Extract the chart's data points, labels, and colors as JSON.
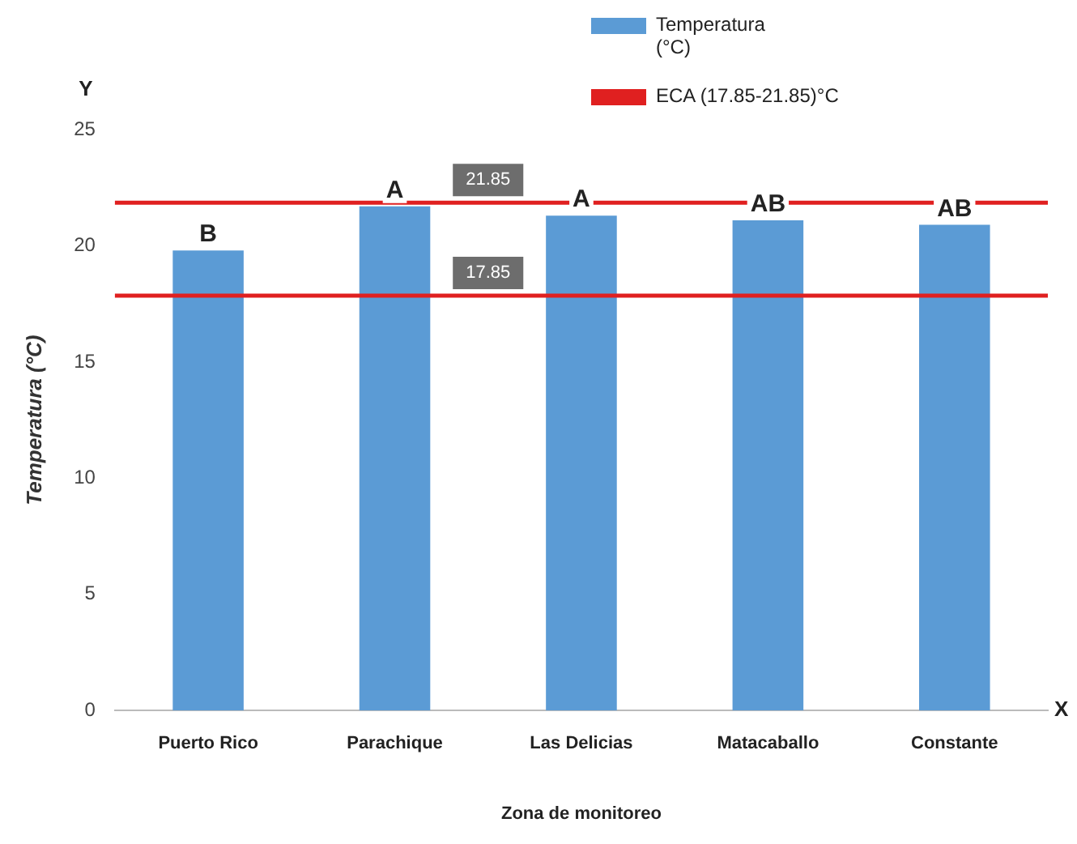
{
  "chart_data": {
    "type": "bar",
    "xlabel": "Zona de monitoreo",
    "ylabel": "Temperatura (°C)",
    "categories": [
      "Puerto Rico",
      "Parachique",
      "Las Delicias",
      "Matacaballo",
      "Constante"
    ],
    "series": [
      {
        "name": "Temperatura (°C)",
        "color": "#5b9bd5",
        "values": [
          19.8,
          21.7,
          21.3,
          21.1,
          20.9
        ]
      }
    ],
    "ylim": [
      0,
      25
    ],
    "yticks": [
      0,
      5,
      10,
      15,
      20,
      25
    ],
    "grid": false,
    "legend": "top right",
    "ref_lines": [
      {
        "axis": "y",
        "value": 21.85,
        "label": "21.85",
        "color": "#e02020"
      },
      {
        "axis": "y",
        "value": 17.85,
        "label": "17.85",
        "color": "#e02020"
      }
    ],
    "annotations": [
      "Y",
      "X",
      "ECA (17.85-21.85)°C",
      {
        "text": "B",
        "x": "Puerto Rico",
        "y": 19.8
      },
      {
        "text": "A",
        "x": "Parachique",
        "y": 21.7
      },
      {
        "text": "A",
        "x": "Las Delicias",
        "y": 21.3
      },
      {
        "text": "AB",
        "x": "Matacaballo",
        "y": 21.1
      },
      {
        "text": "AB",
        "x": "Constante",
        "y": 20.9
      }
    ]
  }
}
